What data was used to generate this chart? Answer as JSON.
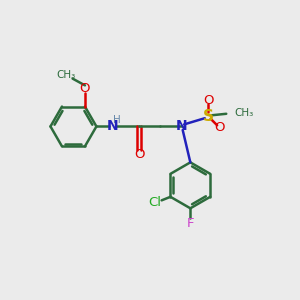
{
  "background_color": "#ebebeb",
  "bond_color": "#2d6b3c",
  "bond_width": 1.8,
  "figsize": [
    3.0,
    3.0
  ],
  "dpi": 100,
  "xlim": [
    0,
    10
  ],
  "ylim": [
    0,
    10
  ],
  "nh_color": "#4444cc",
  "n_color": "#2222bb",
  "o_color": "#dd0000",
  "s_color": "#ccaa00",
  "cl_color": "#22aa22",
  "f_color": "#cc44cc",
  "h_color": "#6688aa"
}
